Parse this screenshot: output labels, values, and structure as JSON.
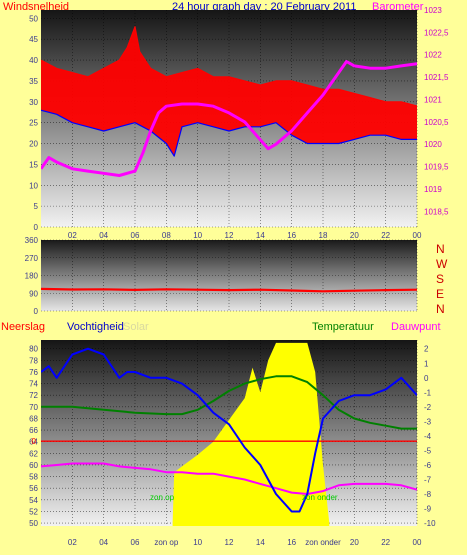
{
  "colors": {
    "background": "#ffff99",
    "wind_speed": "#ff0000",
    "wind_avg": "#0000ff",
    "barometer": "#ff00ff",
    "wind_dir": "#ff0000",
    "humidity": "#0000ff",
    "temperature": "#008000",
    "dewpoint": "#ff00ff",
    "solar": "#ffff00",
    "rain": "#808080",
    "axis_text_left": "#3b3b8f",
    "axis_text_right": "#cc00cc",
    "compass_text": "#cc0000"
  },
  "header": {
    "title": "24 hour graph day : 20 February 2011",
    "left_label": "Windsnelheid",
    "right_label": "Barometer"
  },
  "wind_dir_labels": [
    "N",
    "W",
    "S",
    "E",
    "N"
  ],
  "bottom_header": {
    "rain": "Neerslag",
    "humidity": "Vochtigheid",
    "solar": "Solar",
    "temperature": "Temperatuur",
    "dewpoint": "Dauwpunt"
  },
  "sun_labels": {
    "up": "zon op",
    "down": "zon onder"
  },
  "chart_data": [
    {
      "type": "line",
      "xlabel": "",
      "x_ticks": [
        "02",
        "04",
        "06",
        "08",
        "10",
        "12",
        "14",
        "16",
        "18",
        "20",
        "22",
        "00"
      ],
      "xlim": [
        0,
        24
      ],
      "left_axis": {
        "label": "Windsnelheid",
        "ylim": [
          0,
          52
        ],
        "ticks": [
          0,
          5,
          10,
          15,
          20,
          25,
          30,
          35,
          40,
          45,
          50
        ]
      },
      "right_axis": {
        "label": "Barometer",
        "ylim": [
          1018.15,
          1023.0
        ],
        "ticks": [
          "1018,5",
          "1019",
          "1019,5",
          "1020",
          "1020,5",
          "1021",
          "1021,5",
          "1022",
          "1022,5",
          "1023"
        ]
      },
      "series": [
        {
          "key": "gust",
          "axis": "left",
          "x": [
            0,
            1,
            2,
            3,
            4,
            5,
            5.5,
            6,
            6.3,
            7,
            8,
            9,
            10,
            11,
            12,
            13,
            14,
            15,
            16,
            17,
            18,
            19,
            20,
            21,
            22,
            23,
            24
          ],
          "values": [
            40,
            38,
            37,
            36,
            38,
            40,
            43,
            48,
            42,
            38,
            36,
            37,
            38,
            36,
            36,
            35,
            34,
            35,
            35,
            34,
            33,
            33,
            32,
            31,
            30,
            30,
            29
          ]
        },
        {
          "key": "wind_avg",
          "axis": "left",
          "x": [
            0,
            1,
            2,
            3,
            4,
            5,
            6,
            7,
            8,
            8.5,
            9,
            10,
            11,
            12,
            13,
            14,
            15,
            16,
            17,
            18,
            19,
            20,
            21,
            22,
            23,
            24
          ],
          "values": [
            28,
            27,
            25,
            24,
            23,
            24,
            25,
            23,
            20,
            17,
            24,
            25,
            24,
            23,
            24,
            24,
            25,
            22,
            20,
            20,
            20,
            21,
            22,
            22,
            21,
            21
          ]
        },
        {
          "key": "barometer",
          "axis": "right",
          "x": [
            0,
            0.5,
            1,
            2,
            3,
            4,
            5,
            6,
            6.5,
            7,
            7.5,
            8,
            9,
            10,
            11,
            12,
            13,
            14,
            14.5,
            15,
            16,
            17,
            18,
            19,
            19.5,
            20,
            21,
            22,
            23,
            24
          ],
          "values": [
            1019.45,
            1019.7,
            1019.6,
            1019.45,
            1019.4,
            1019.35,
            1019.3,
            1019.4,
            1019.8,
            1020.3,
            1020.7,
            1020.85,
            1020.9,
            1020.9,
            1020.85,
            1020.7,
            1020.5,
            1020.1,
            1019.9,
            1020.0,
            1020.3,
            1020.7,
            1021.1,
            1021.6,
            1021.85,
            1021.75,
            1021.7,
            1021.7,
            1021.75,
            1021.8
          ]
        }
      ]
    },
    {
      "type": "line",
      "xlabel": "",
      "xlim": [
        0,
        24
      ],
      "left_axis": {
        "ylim": [
          0,
          360
        ],
        "ticks": [
          0,
          90,
          180,
          270,
          360
        ]
      },
      "series": [
        {
          "key": "wind_dir",
          "x": [
            0,
            2,
            4,
            6,
            8,
            10,
            12,
            14,
            16,
            18,
            20,
            22,
            24
          ],
          "values": [
            112,
            109,
            110,
            107,
            110,
            108,
            106,
            108,
            104,
            100,
            103,
            106,
            108
          ]
        }
      ]
    },
    {
      "type": "area",
      "xlabel": "",
      "x_ticks": [
        "02",
        "04",
        "06",
        "zon op",
        "10",
        "12",
        "14",
        "16",
        "zon onder",
        "20",
        "22",
        "00"
      ],
      "xlim": [
        0,
        24
      ],
      "left_axis": {
        "label": "Vochtigheid",
        "ylim": [
          49.5,
          81.5
        ],
        "ticks": [
          50,
          52,
          54,
          56,
          58,
          60,
          62,
          64,
          66,
          68,
          70,
          72,
          74,
          76,
          78,
          80
        ]
      },
      "right_axis": {
        "label": "Temperatuur",
        "ylim": [
          -10.2,
          2.6
        ],
        "ticks": [
          -10,
          -9,
          -8,
          -7,
          -6,
          -5,
          -4,
          -3,
          -2,
          -1,
          0,
          1,
          2
        ]
      },
      "rain_label": "0",
      "series": [
        {
          "key": "humidity",
          "axis": "left",
          "x": [
            0,
            0.5,
            1,
            2,
            3,
            4,
            5,
            5.5,
            6,
            7,
            8,
            9,
            10,
            11,
            12,
            13,
            14,
            15,
            16,
            16.5,
            17,
            17.5,
            18,
            19,
            20,
            21,
            22,
            23,
            24
          ],
          "values": [
            76,
            77,
            75,
            79,
            80,
            79,
            75,
            76,
            76,
            75,
            75,
            74,
            72,
            69,
            67,
            63,
            60,
            55,
            52,
            52,
            55,
            62,
            68,
            71,
            72,
            72,
            73,
            75,
            72
          ]
        },
        {
          "key": "temperature",
          "axis": "right",
          "x": [
            0,
            2,
            4,
            6,
            8,
            9,
            10,
            11,
            12,
            13,
            14,
            15,
            16,
            17,
            18,
            19,
            20,
            21,
            22,
            23,
            24
          ],
          "values": [
            -2.0,
            -2.0,
            -2.2,
            -2.4,
            -2.5,
            -2.5,
            -2.2,
            -1.6,
            -0.9,
            -0.4,
            -0.1,
            0.1,
            0.1,
            -0.3,
            -1.2,
            -2.2,
            -2.8,
            -3.1,
            -3.3,
            -3.5,
            -3.5
          ]
        },
        {
          "key": "dewpoint",
          "axis": "right",
          "x": [
            0,
            1,
            2,
            3,
            4,
            5,
            6,
            7,
            8,
            9,
            10,
            11,
            12,
            13,
            14,
            15,
            16,
            17,
            18,
            19,
            20,
            21,
            22,
            23,
            24
          ],
          "values": [
            -6.1,
            -6.0,
            -5.9,
            -5.9,
            -5.9,
            -6.1,
            -6.2,
            -6.3,
            -6.5,
            -6.5,
            -6.6,
            -6.6,
            -6.8,
            -7.0,
            -7.3,
            -7.6,
            -7.9,
            -8.0,
            -7.8,
            -7.4,
            -7.3,
            -7.3,
            -7.3,
            -7.4,
            -7.7
          ]
        },
        {
          "key": "solar",
          "axis": "right",
          "x": [
            8.4,
            8.5,
            9,
            10,
            11,
            12,
            13,
            13.5,
            14,
            14.5,
            15,
            15.5,
            16,
            16.5,
            17,
            17.5,
            18,
            18.4
          ],
          "values": [
            -10,
            -6.5,
            -6.1,
            -5.3,
            -4.4,
            -2.9,
            -1.4,
            0.7,
            -1.0,
            1.2,
            2.4,
            2.4,
            2.4,
            2.4,
            2.4,
            0.4,
            -6.0,
            -10
          ]
        }
      ]
    }
  ]
}
